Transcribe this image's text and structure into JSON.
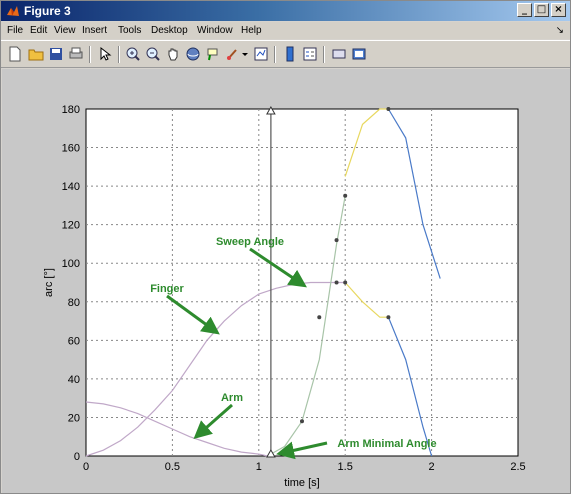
{
  "window": {
    "title": "Figure 3"
  },
  "menu": [
    "File",
    "Edit",
    "View",
    "Insert",
    "Tools",
    "Desktop",
    "Window",
    "Help"
  ],
  "toolbar_icons": [
    "new-file-icon",
    "open-folder-icon",
    "save-icon",
    "print-icon",
    "pointer-icon",
    "zoom-in-icon",
    "zoom-out-icon",
    "pan-hand-icon",
    "rotate-3d-icon",
    "data-cursor-icon",
    "brush-icon",
    "brush-dropdown-icon",
    "link-plot-icon",
    "colorbar-icon",
    "legend-icon",
    "hide-plot-tools-icon",
    "show-plot-tools-icon"
  ],
  "chart_data": {
    "type": "line",
    "xlabel": "time [s]",
    "ylabel": "arc [°]",
    "xlim": [
      0,
      2.5
    ],
    "ylim": [
      0,
      180
    ],
    "x_ticks": [
      "0",
      "0.5",
      "1",
      "1.5",
      "2",
      "2.5"
    ],
    "y_ticks": [
      "0",
      "20",
      "40",
      "60",
      "80",
      "100",
      "120",
      "140",
      "160",
      "180"
    ],
    "grid": true,
    "series": [
      {
        "name": "Finger",
        "color": "#c0a8c8",
        "x": [
          0,
          0.1,
          0.2,
          0.3,
          0.4,
          0.5,
          0.6,
          0.7,
          0.8,
          0.9,
          1.0,
          1.1,
          1.2,
          1.3,
          1.4,
          1.5
        ],
        "y": [
          0,
          3,
          8,
          15,
          24,
          34,
          47,
          60,
          70,
          78,
          84,
          87,
          89,
          90,
          90,
          90
        ]
      },
      {
        "name": "Arm",
        "color": "#c0a8c8",
        "x": [
          0,
          0.1,
          0.2,
          0.3,
          0.4,
          0.5,
          0.6,
          0.7,
          0.8,
          0.9,
          1.0,
          1.05
        ],
        "y": [
          28,
          27,
          25,
          22,
          18,
          14,
          10,
          7,
          4,
          2,
          1,
          0
        ]
      },
      {
        "name": "",
        "color": "#a8c4a8",
        "x": [
          1.05,
          1.15,
          1.25,
          1.35,
          1.45,
          1.5
        ],
        "y": [
          0,
          5,
          18,
          50,
          110,
          135
        ]
      },
      {
        "name": "",
        "color": "#e8d860",
        "x": [
          1.5,
          1.6,
          1.7,
          1.75
        ],
        "y": [
          145,
          172,
          180,
          180
        ]
      },
      {
        "name": "",
        "color": "#e8d860",
        "x": [
          1.5,
          1.6,
          1.7,
          1.75
        ],
        "y": [
          90,
          80,
          72,
          72
        ]
      },
      {
        "name": "",
        "color": "#4a7ac8",
        "x": [
          1.75,
          1.85,
          1.95,
          2.05
        ],
        "y": [
          180,
          165,
          120,
          92
        ]
      },
      {
        "name": "",
        "color": "#4a7ac8",
        "x": [
          1.75,
          1.85,
          1.95,
          2.0
        ],
        "y": [
          72,
          50,
          15,
          0
        ]
      }
    ],
    "markers": [
      {
        "x": 1.25,
        "y": 18
      },
      {
        "x": 1.35,
        "y": 72
      },
      {
        "x": 1.45,
        "y": 112
      },
      {
        "x": 1.5,
        "y": 135
      },
      {
        "x": 1.45,
        "y": 90
      },
      {
        "x": 1.5,
        "y": 90
      },
      {
        "x": 1.75,
        "y": 180
      },
      {
        "x": 1.75,
        "y": 72
      }
    ],
    "vertical_line": {
      "x": 1.07
    },
    "annotations": [
      {
        "text": "Sweep Angle",
        "target_x": 1.25,
        "target_y": 90
      },
      {
        "text": "Finger",
        "target_x": 0.77,
        "target_y": 65
      },
      {
        "text": "Arm",
        "target_x": 0.65,
        "target_y": 10
      },
      {
        "text": "Arm Minimal Angle",
        "target_x": 1.1,
        "target_y": 1
      }
    ]
  }
}
